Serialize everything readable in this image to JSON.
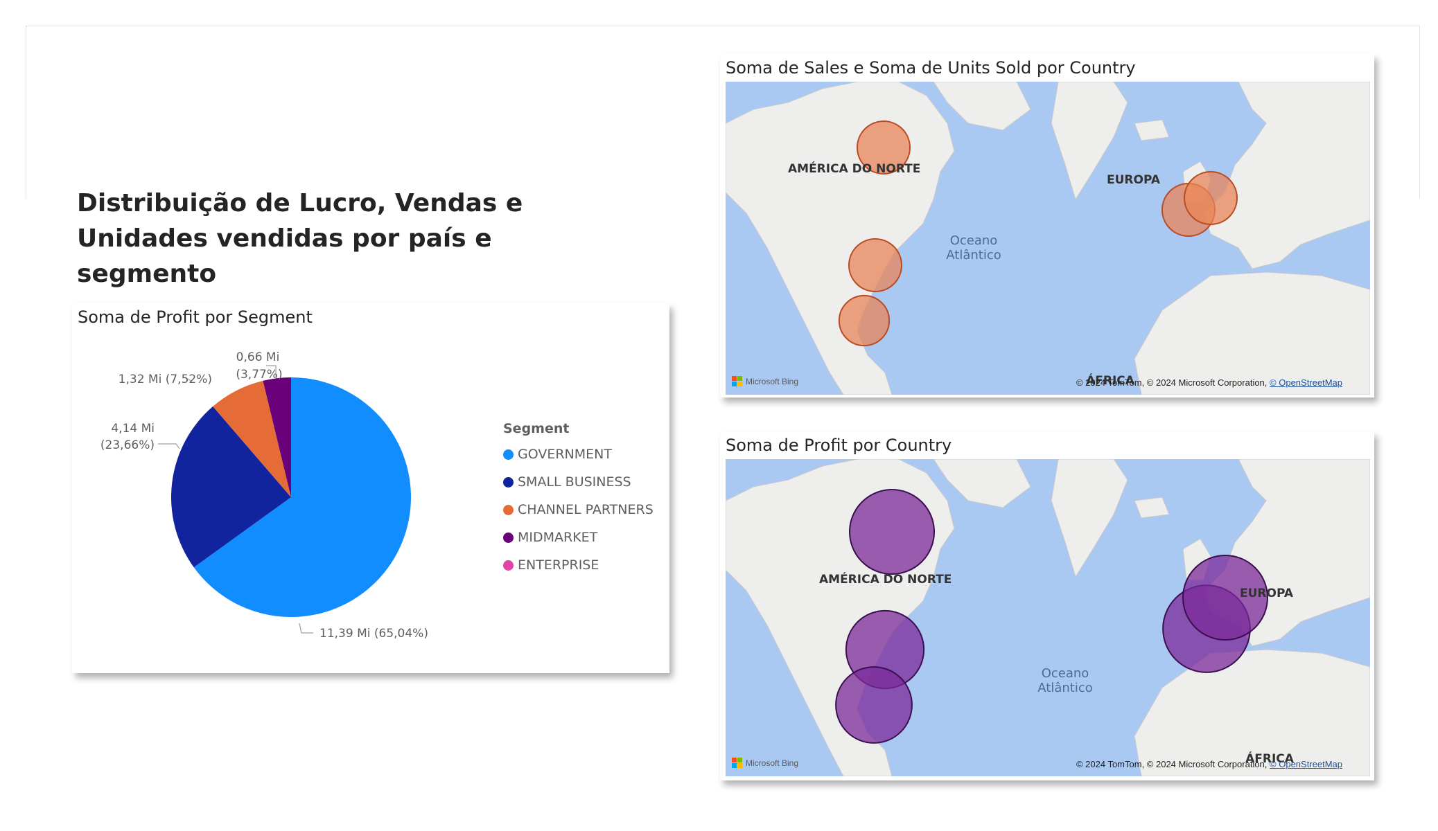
{
  "page": {
    "title_line1": "Distribuição de Lucro, Vendas e",
    "title_line2": "Unidades vendidas por país e segmento"
  },
  "pie_visual": {
    "title": "Soma de Profit por Segment",
    "legend_title": "Segment",
    "legend": [
      {
        "name": "GOVERNMENT",
        "color": "#118DFF"
      },
      {
        "name": "SMALL BUSINESS",
        "color": "#12239E"
      },
      {
        "name": "CHANNEL PARTNERS",
        "color": "#E66C37"
      },
      {
        "name": "MIDMARKET",
        "color": "#6B007B"
      },
      {
        "name": "ENTERPRISE",
        "color": "#E044A7"
      }
    ],
    "labels": {
      "government": "11,39 Mi (65,04%)",
      "small_business_1": "4,14 Mi",
      "small_business_2": "(23,66%)",
      "channel_partners": "1,32 Mi (7,52%)",
      "midmarket_1": "0,66 Mi",
      "midmarket_2": "(3,77%)"
    }
  },
  "map_sales": {
    "title": "Soma de Sales e Soma de Units Sold por Country",
    "bubble_color": "#E8865A",
    "labels": {
      "north_america": "AMÉRICA DO NORTE",
      "europe": "EUROPA",
      "ocean_1": "Oceano",
      "ocean_2": "Atlântico",
      "africa": "ÁFRICA"
    },
    "attribution": "© 2024 TomTom, © 2024 Microsoft Corporation,",
    "osm": "© OpenStreetMap",
    "bing": "Microsoft Bing"
  },
  "map_profit": {
    "title": "Soma de Profit por Country",
    "bubble_color": "#7B2A9A",
    "labels": {
      "north_america": "AMÉRICA DO NORTE",
      "europe": "EUROPA",
      "ocean_1": "Oceano",
      "ocean_2": "Atlântico",
      "africa": "ÁFRICA"
    },
    "attribution": "© 2024 TomTom, © 2024 Microsoft Corporation,",
    "osm": "© OpenStreetMap",
    "bing": "Microsoft Bing"
  },
  "chart_data": [
    {
      "type": "pie",
      "title": "Soma de Profit por Segment",
      "legend_title": "Segment",
      "legend_position": "right",
      "categories": [
        "GOVERNMENT",
        "SMALL BUSINESS",
        "CHANNEL PARTNERS",
        "MIDMARKET",
        "ENTERPRISE"
      ],
      "values": [
        11.39,
        4.14,
        1.32,
        0.66,
        0
      ],
      "percent": [
        65.04,
        23.66,
        7.52,
        3.77,
        0
      ],
      "unit": "Mi",
      "colors": [
        "#118DFF",
        "#12239E",
        "#E66C37",
        "#6B007B",
        "#E044A7"
      ]
    },
    {
      "type": "map",
      "title": "Soma de Sales e Soma de Units Sold por Country",
      "bubbles": [
        {
          "location": "Canada",
          "relative_size": 1.0
        },
        {
          "location": "United States of America",
          "relative_size": 1.0
        },
        {
          "location": "Mexico",
          "relative_size": 0.95
        },
        {
          "location": "France",
          "relative_size": 1.0
        },
        {
          "location": "Germany",
          "relative_size": 1.0
        }
      ]
    },
    {
      "type": "map",
      "title": "Soma de Profit por Country",
      "bubbles": [
        {
          "location": "Canada",
          "relative_size": 1.0
        },
        {
          "location": "United States of America",
          "relative_size": 0.92
        },
        {
          "location": "Mexico",
          "relative_size": 0.9
        },
        {
          "location": "France",
          "relative_size": 1.03
        },
        {
          "location": "Germany",
          "relative_size": 1.0
        }
      ]
    }
  ]
}
